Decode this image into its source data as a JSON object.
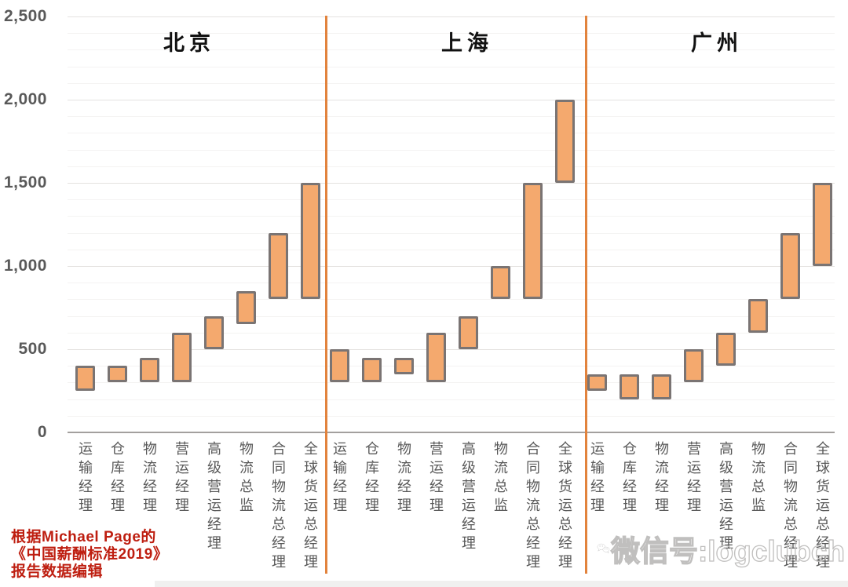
{
  "chart_data": {
    "type": "bar",
    "subtype": "floating-range-bars",
    "title": "",
    "ylabel": "",
    "xlabel": "",
    "ylim": [
      0,
      2500
    ],
    "yticks": [
      {
        "value": 0,
        "label": "0"
      },
      {
        "value": 500,
        "label": "500"
      },
      {
        "value": 1000,
        "label": "1,000"
      },
      {
        "value": 1500,
        "label": "1,500"
      },
      {
        "value": 2000,
        "label": "2,000"
      },
      {
        "value": 2500,
        "label": "2,500"
      }
    ],
    "minor_grid_step": 100,
    "major_grid_step": 500,
    "grid": true,
    "legend": false,
    "categories": [
      "运输经理",
      "仓库经理",
      "物流经理",
      "营运经理",
      "高级营运经理",
      "物流总监",
      "合同物流总经理",
      "全球货运总经理"
    ],
    "groups": [
      {
        "city": "北京",
        "ranges": [
          [
            250,
            400
          ],
          [
            300,
            400
          ],
          [
            300,
            450
          ],
          [
            300,
            600
          ],
          [
            500,
            700
          ],
          [
            650,
            850
          ],
          [
            800,
            1200
          ],
          [
            800,
            1500
          ]
        ]
      },
      {
        "city": "上海",
        "ranges": [
          [
            300,
            500
          ],
          [
            300,
            450
          ],
          [
            350,
            450
          ],
          [
            300,
            600
          ],
          [
            500,
            700
          ],
          [
            800,
            1000
          ],
          [
            800,
            1500
          ],
          [
            1500,
            2000
          ]
        ]
      },
      {
        "city": "广州",
        "ranges": [
          [
            250,
            350
          ],
          [
            200,
            350
          ],
          [
            200,
            350
          ],
          [
            300,
            500
          ],
          [
            400,
            600
          ],
          [
            600,
            800
          ],
          [
            800,
            1200
          ],
          [
            1000,
            1500
          ]
        ]
      }
    ],
    "colors": {
      "bar_fill": "#F4A96E",
      "bar_border": "#7A7473",
      "divider": "#E2833D",
      "axis_text": "#595959",
      "city_title_text": "#111111",
      "zero_axis_line": "#A3A09E"
    }
  },
  "source_note": {
    "lines": [
      "根据Michael Page的",
      "《中国薪酬标准2019》",
      "报告数据编辑"
    ],
    "color": "#BE1E10"
  },
  "watermark": {
    "text": "微信号:logclubch",
    "icon": "wechat-bubbles-icon"
  }
}
